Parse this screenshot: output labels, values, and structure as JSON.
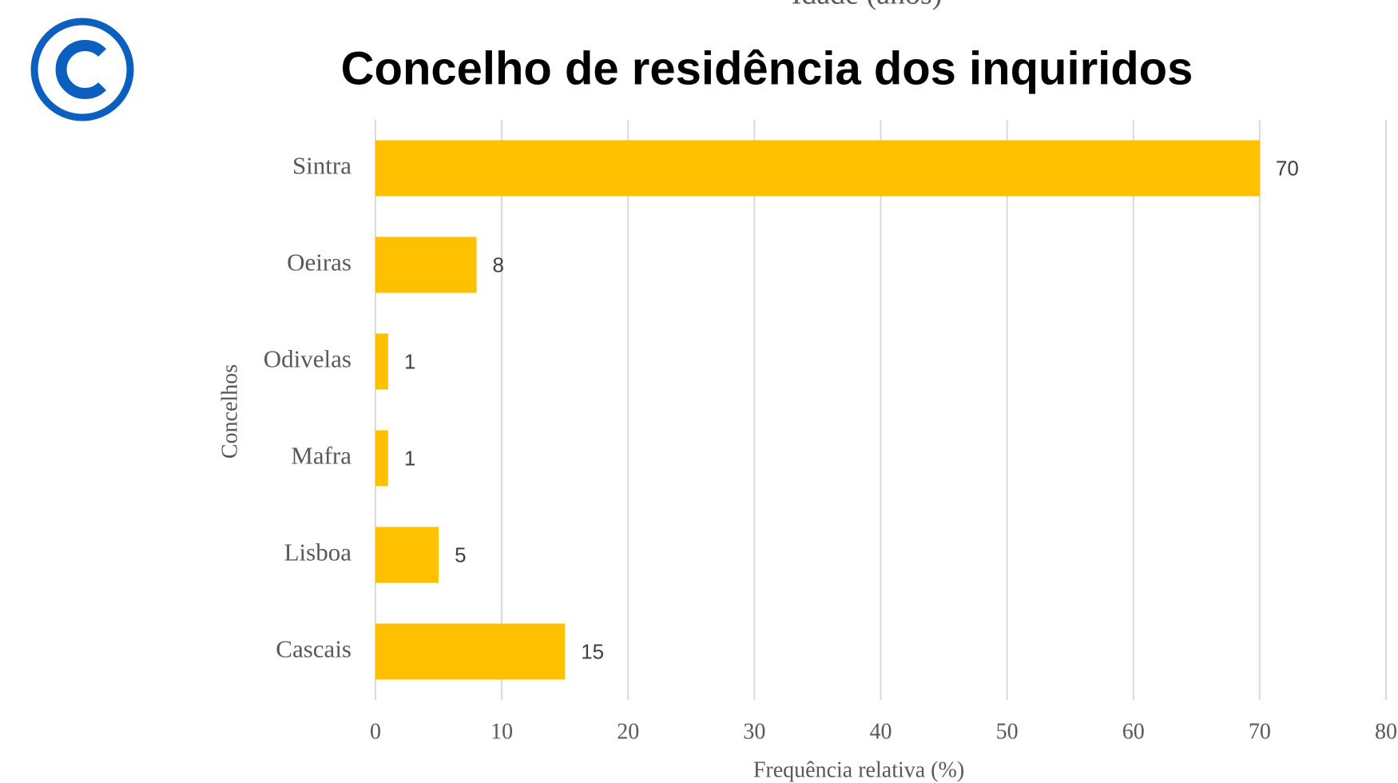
{
  "chart_data": {
    "type": "bar",
    "orientation": "horizontal",
    "header_text": "Idade (anos)",
    "title": "Concelho de residência dos inquiridos",
    "categories": [
      "Sintra",
      "Oeiras",
      "Odivelas",
      "Mafra",
      "Lisboa",
      "Cascais"
    ],
    "values": [
      70,
      8,
      1,
      1,
      5,
      15
    ],
    "color": "#ffc000",
    "xlim": [
      0,
      80
    ],
    "xticks": [
      0,
      10,
      20,
      30,
      40,
      50,
      60,
      70,
      80
    ],
    "xlabel": "Frequência relativa (%)",
    "ylabel": "Concelhos",
    "grid": true
  }
}
